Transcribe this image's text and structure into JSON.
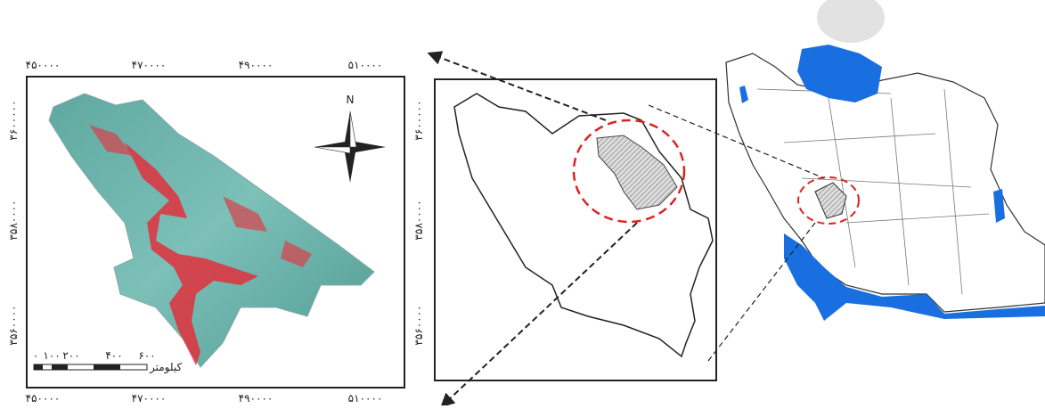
{
  "map": {
    "top_ticks": [
      "۴۵۰۰۰۰",
      "۴۷۰۰۰۰",
      "۴۹۰۰۰۰",
      "۵۱۰۰۰۰"
    ],
    "bottom_ticks": [
      "۴۵۰۰۰۰",
      "۴۷۰۰۰۰",
      "۴۹۰۰۰۰",
      "۵۱۰۰۰۰"
    ],
    "left_ticks": [
      "۳۶۰۰۰۰۰",
      "۳۵۸۰۰۰۰",
      "۳۵۶۰۰۰۰"
    ],
    "right_ticks": [
      "۳۶۰۰۰۰۰",
      "۳۵۸۰۰۰۰",
      "۳۵۶۰۰۰۰"
    ],
    "north_label": "N",
    "scale": {
      "labels": [
        "۰",
        "۱۰۰",
        "۲۰۰",
        "۴۰۰",
        "۶۰۰"
      ],
      "unit": "کیلومتر"
    }
  }
}
